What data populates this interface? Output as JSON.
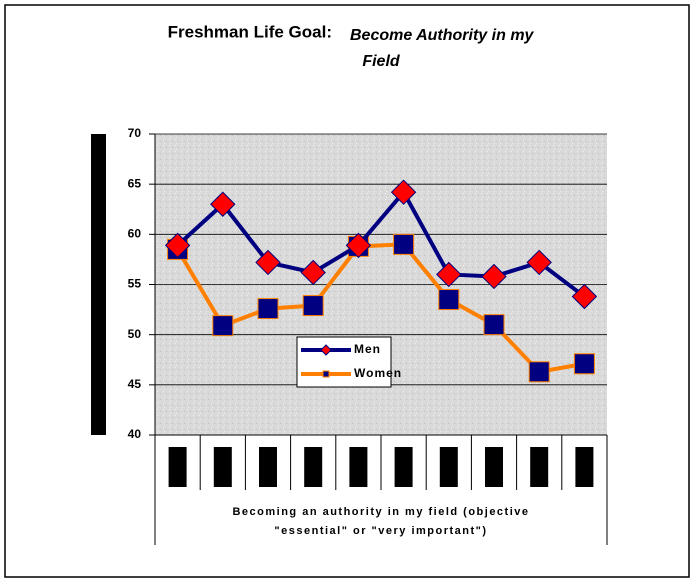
{
  "chart_data": {
    "type": "line",
    "title": "Freshman Life Goal:",
    "subtitle": "Become Authority in my Field",
    "x_label": "Becoming an authority in my field  (objective \"essential\" or \"very important\")",
    "categories": [
      null,
      null,
      null,
      null,
      null,
      null,
      null,
      null,
      null,
      null
    ],
    "series": [
      {
        "name": "Men",
        "color": "#000080",
        "marker_color": "#ff0000",
        "marker": "diamond",
        "values": [
          58.9,
          63,
          57.2,
          56.2,
          58.9,
          64.2,
          56,
          55.8,
          57.2,
          53.8
        ]
      },
      {
        "name": "Women",
        "color": "#ff7f00",
        "marker_color": "#000080",
        "marker": "square",
        "values": [
          58.5,
          50.9,
          52.6,
          52.9,
          58.8,
          59,
          53.5,
          51,
          46.3,
          47.1
        ]
      }
    ],
    "ylim": [
      40,
      70
    ],
    "yticks": [
      40,
      45,
      50,
      55,
      60,
      65,
      70
    ],
    "grid": true
  }
}
